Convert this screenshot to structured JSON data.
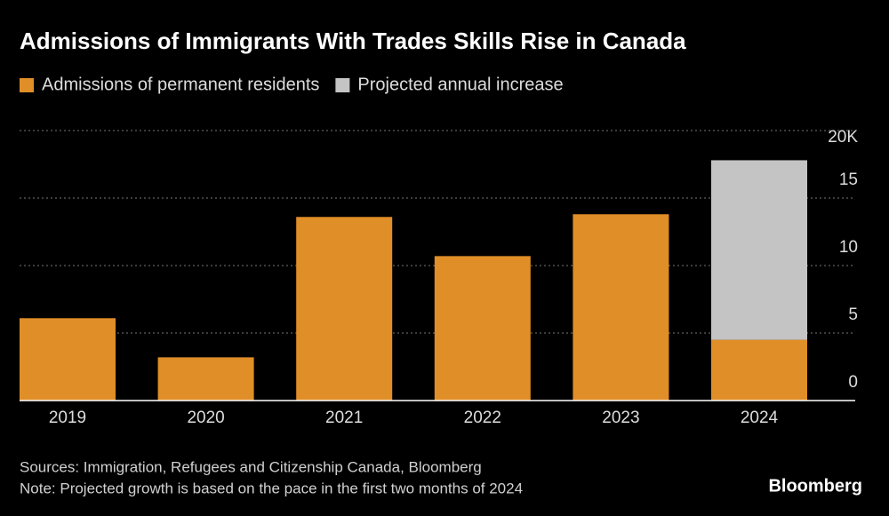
{
  "chart_data": {
    "type": "bar",
    "stacked": true,
    "title": "Admissions of Immigrants With Trades Skills Rise in Canada",
    "categories": [
      "2019",
      "2020",
      "2021",
      "2022",
      "2023",
      "2024"
    ],
    "series": [
      {
        "name": "Admissions of permanent residents",
        "color": "#e08e28",
        "values": [
          6.1,
          3.2,
          13.6,
          10.7,
          13.8,
          4.5
        ]
      },
      {
        "name": "Projected annual increase",
        "color": "#c4c4c4",
        "values": [
          null,
          null,
          null,
          null,
          null,
          13.3
        ]
      }
    ],
    "ylim": [
      0,
      20
    ],
    "yticks": [
      0,
      5,
      10,
      15,
      {
        "value": 20,
        "label": "20K"
      }
    ],
    "grid": true,
    "source": "Sources: Immigration, Refugees and Citizenship Canada, Bloomberg",
    "note": "Note: Projected growth is based on the pace in the first two months of 2024",
    "brand": "Bloomberg"
  }
}
